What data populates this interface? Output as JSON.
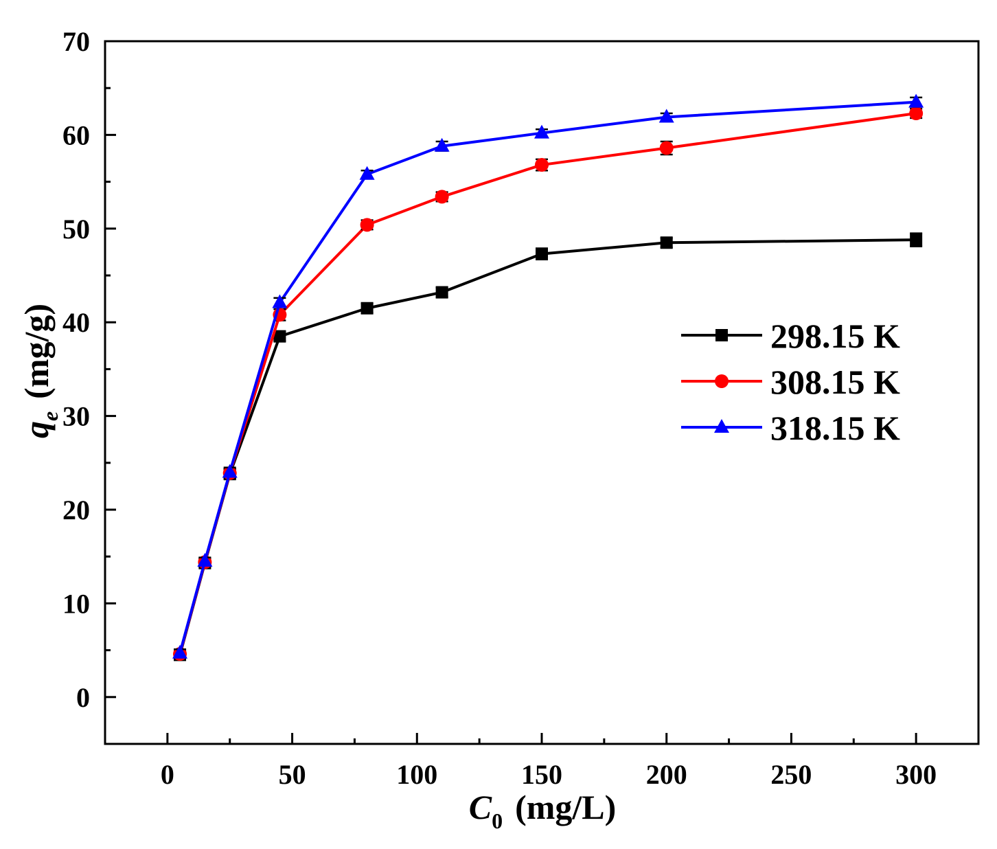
{
  "chart_data": {
    "type": "line",
    "xlabel": {
      "var": "C",
      "sub": "0",
      "unit": "(mg/L)"
    },
    "ylabel": {
      "var": "q",
      "sub": "e",
      "unit": "(mg/g)"
    },
    "xlim": [
      -25,
      325
    ],
    "ylim": [
      -5,
      70
    ],
    "xticks": [
      0,
      50,
      100,
      150,
      200,
      250,
      300
    ],
    "yticks": [
      0,
      10,
      20,
      30,
      40,
      50,
      60,
      70
    ],
    "grid": false,
    "legend_position": "right",
    "x": [
      5,
      15,
      25,
      45,
      80,
      110,
      150,
      200,
      300
    ],
    "series": [
      {
        "name": "298.15 K",
        "color": "#000000",
        "marker": "square",
        "values": [
          4.5,
          14.3,
          23.8,
          38.5,
          41.5,
          43.2,
          47.3,
          48.5,
          48.8
        ],
        "errors": [
          0.4,
          0.4,
          0.5,
          0.5,
          0.5,
          0.5,
          0.6,
          0.5,
          0.7
        ]
      },
      {
        "name": "308.15 K",
        "color": "#ff0000",
        "marker": "circle",
        "values": [
          4.6,
          14.4,
          23.9,
          40.8,
          50.4,
          53.4,
          56.8,
          58.6,
          62.3
        ],
        "errors": [
          0.4,
          0.4,
          0.5,
          0.6,
          0.5,
          0.5,
          0.6,
          0.7,
          0.5
        ]
      },
      {
        "name": "318.15 K",
        "color": "#0000ff",
        "marker": "triangle",
        "values": [
          4.7,
          14.5,
          24.0,
          42.1,
          55.8,
          58.8,
          60.2,
          61.9,
          63.5
        ],
        "errors": [
          0.4,
          0.4,
          0.5,
          0.5,
          0.4,
          0.5,
          0.4,
          0.4,
          0.5
        ]
      }
    ]
  }
}
